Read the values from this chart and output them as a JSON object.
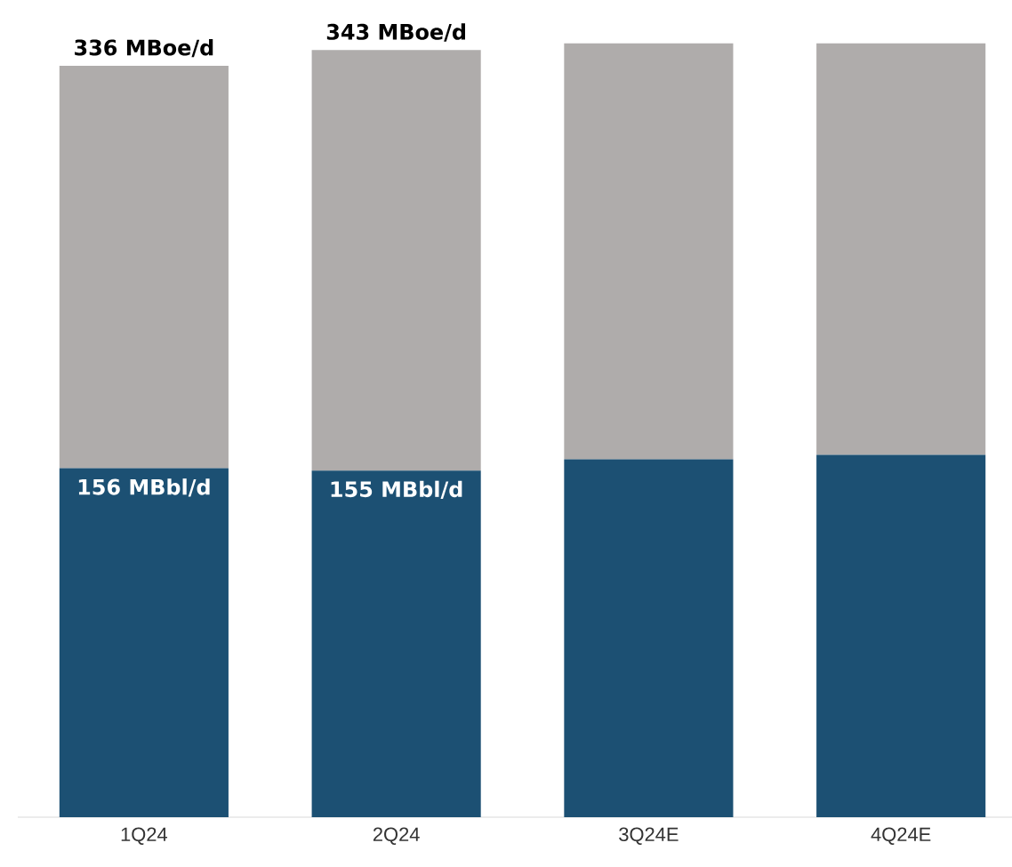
{
  "chart_data": {
    "type": "bar",
    "stacked": true,
    "categories": [
      "1Q24",
      "2Q24",
      "3Q24E",
      "4Q24E"
    ],
    "series": [
      {
        "color": "#1c5073",
        "values": [
          156,
          155,
          160,
          162
        ],
        "value_labels": [
          "156 MBbl/d",
          "155 MBbl/d",
          null,
          null
        ]
      },
      {
        "color": "#afacab",
        "values": [
          180,
          188,
          186,
          184
        ]
      }
    ],
    "totals": [
      "336 MBoe/d",
      "343 MBoe/d",
      null,
      null
    ]
  }
}
